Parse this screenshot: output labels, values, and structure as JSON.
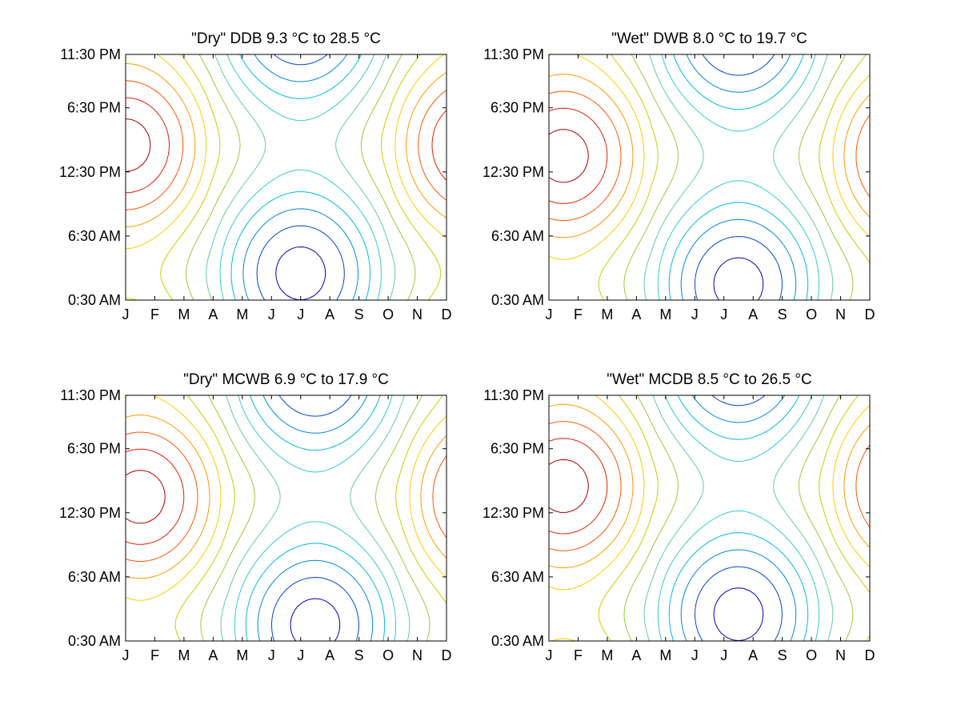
{
  "figure": {
    "panel_count": 4,
    "contour_palette": [
      "#0000aa",
      "#0044cc",
      "#0088dd",
      "#00bbdd",
      "#33cccc",
      "#66cc99",
      "#99cc33",
      "#cccc00",
      "#ffcc00",
      "#ff9900",
      "#ff5500",
      "#dd2200",
      "#aa0000"
    ]
  },
  "chart_data": [
    {
      "type": "contour",
      "title": "\"Dry\" DDB   9.3 °C to  28.5 °C",
      "x_ticks": [
        "J",
        "F",
        "M",
        "A",
        "M",
        "J",
        "J",
        "A",
        "S",
        "O",
        "N",
        "D"
      ],
      "y_ticks": [
        "11:30 PM",
        "6:30 PM",
        "12:30 PM",
        "6:30 AM",
        "0:30 AM"
      ],
      "x": [
        1,
        2,
        3,
        4,
        5,
        6,
        7,
        8,
        9,
        10,
        11,
        12
      ],
      "y_hours": [
        0.5,
        6.5,
        12.5,
        18.5,
        23.5
      ],
      "value_range": [
        9.3,
        28.5
      ],
      "peak_month": 1,
      "peak_hour": 15,
      "trough_month": 7,
      "trough_hour": 4
    },
    {
      "type": "contour",
      "title": "\"Wet\" DWB   8.0 °C to  19.7 °C",
      "x_ticks": [
        "J",
        "F",
        "M",
        "A",
        "M",
        "J",
        "J",
        "A",
        "S",
        "O",
        "N",
        "D"
      ],
      "y_ticks": [
        "11:30 PM",
        "6:30 PM",
        "12:30 PM",
        "6:30 AM",
        "0:30 AM"
      ],
      "x": [
        1,
        2,
        3,
        4,
        5,
        6,
        7,
        8,
        9,
        10,
        11,
        12
      ],
      "y_hours": [
        0.5,
        6.5,
        12.5,
        18.5,
        23.5
      ],
      "value_range": [
        8.0,
        19.7
      ],
      "peak_month": 1.5,
      "peak_hour": 14,
      "trough_month": 7,
      "trough_hour": 4
    },
    {
      "type": "contour",
      "title": "\"Dry\" MCWB   6.9 °C to  17.9 °C",
      "x_ticks": [
        "J",
        "F",
        "M",
        "A",
        "M",
        "J",
        "J",
        "A",
        "S",
        "O",
        "N",
        "D"
      ],
      "y_ticks": [
        "11:30 PM",
        "6:30 PM",
        "12:30 PM",
        "6:30 AM",
        "0:30 AM"
      ],
      "x": [
        1,
        2,
        3,
        4,
        5,
        6,
        7,
        8,
        9,
        10,
        11,
        12
      ],
      "y_hours": [
        0.5,
        6.5,
        12.5,
        18.5,
        23.5
      ],
      "value_range": [
        6.9,
        17.9
      ],
      "peak_month": 1.5,
      "peak_hour": 14,
      "trough_month": 7,
      "trough_hour": 3
    },
    {
      "type": "contour",
      "title": "\"Wet\" MCDB   8.5 °C to  26.5 °C",
      "x_ticks": [
        "J",
        "F",
        "M",
        "A",
        "M",
        "J",
        "J",
        "A",
        "S",
        "O",
        "N",
        "D"
      ],
      "y_ticks": [
        "11:30 PM",
        "6:30 PM",
        "12:30 PM",
        "6:30 AM",
        "0:30 AM"
      ],
      "x": [
        1,
        2,
        3,
        4,
        5,
        6,
        7,
        8,
        9,
        10,
        11,
        12
      ],
      "y_hours": [
        0.5,
        6.5,
        12.5,
        18.5,
        23.5
      ],
      "value_range": [
        8.5,
        26.5
      ],
      "peak_month": 1.5,
      "peak_hour": 15,
      "trough_month": 7,
      "trough_hour": 4
    }
  ]
}
